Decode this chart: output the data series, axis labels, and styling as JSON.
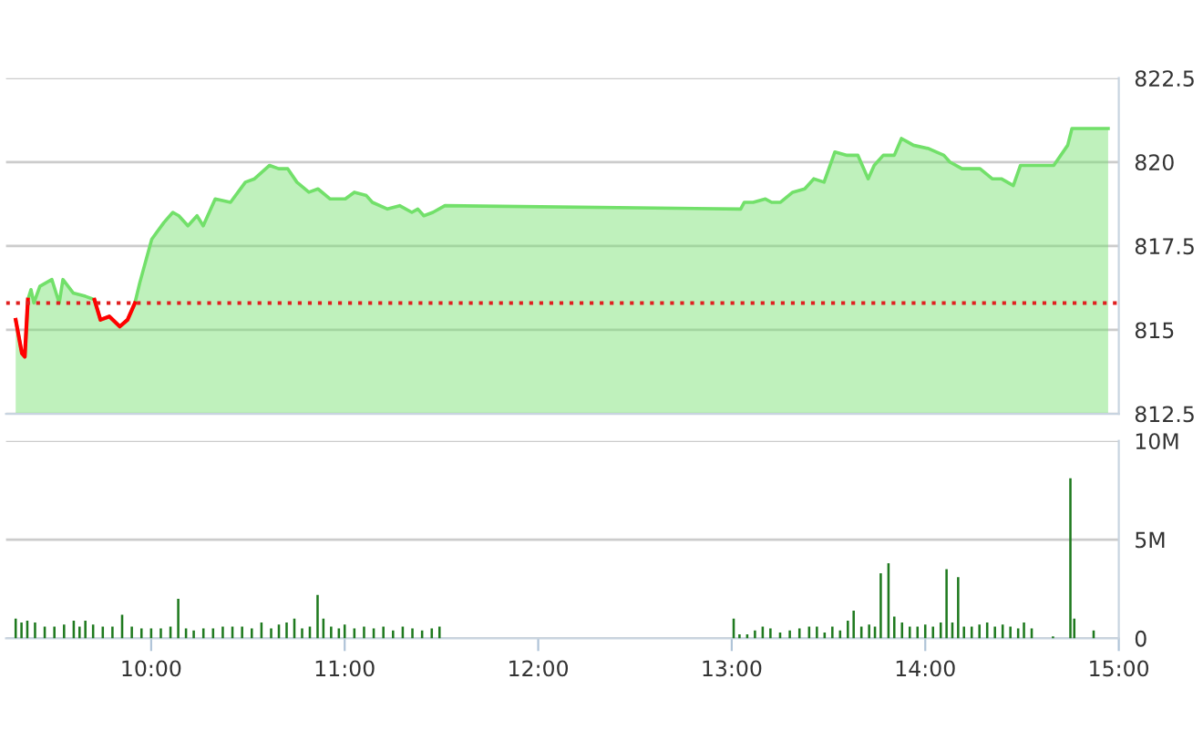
{
  "chart_data": [
    {
      "type": "area",
      "xlim": [
        9.25,
        15
      ],
      "ylim": [
        812.5,
        822.5
      ],
      "yticks": [
        812.5,
        815,
        817.5,
        820,
        822.5
      ],
      "tick_labels": "y",
      "grid": "y",
      "legend": false,
      "series": [
        {
          "color": "#72e06a",
          "x": [
            9.3,
            9.332,
            9.347,
            9.363,
            9.379,
            9.394,
            9.425,
            9.487,
            9.525,
            9.544,
            9.597,
            9.66,
            9.707,
            9.738,
            9.784,
            9.838,
            9.878,
            9.916,
            9.941,
            10.003,
            10.066,
            10.112,
            10.143,
            10.19,
            10.237,
            10.269,
            10.331,
            10.41,
            10.487,
            10.534,
            10.612,
            10.659,
            10.706,
            10.753,
            10.815,
            10.862,
            10.925,
            11.003,
            11.05,
            11.112,
            11.143,
            11.221,
            11.284,
            11.347,
            11.378,
            11.409,
            11.456,
            11.518,
            13.046,
            13.065,
            13.111,
            13.174,
            13.206,
            13.252,
            13.315,
            13.377,
            13.424,
            13.477,
            13.533,
            13.596,
            13.652,
            13.705,
            13.736,
            13.783,
            13.84,
            13.877,
            13.908,
            13.939,
            14.018,
            14.096,
            14.127,
            14.19,
            14.283,
            14.346,
            14.393,
            14.455,
            14.492,
            14.664,
            14.736,
            14.758,
            14.945
          ],
          "values": [
            815.3,
            814.3,
            814.2,
            815.9,
            816.2,
            815.8,
            816.3,
            816.5,
            815.8,
            816.5,
            816.1,
            816.0,
            815.9,
            815.3,
            815.4,
            815.1,
            815.3,
            815.8,
            816.4,
            817.7,
            818.2,
            818.5,
            818.4,
            818.1,
            818.4,
            818.1,
            818.9,
            818.8,
            819.4,
            819.5,
            819.9,
            819.8,
            819.8,
            819.4,
            819.1,
            819.2,
            818.9,
            818.9,
            819.1,
            819.0,
            818.8,
            818.6,
            818.7,
            818.5,
            818.6,
            818.4,
            818.5,
            818.7,
            818.6,
            818.8,
            818.8,
            818.9,
            818.8,
            818.8,
            819.1,
            819.2,
            819.5,
            819.4,
            820.3,
            820.2,
            820.2,
            819.5,
            819.9,
            820.2,
            820.2,
            820.7,
            820.6,
            820.5,
            820.4,
            820.2,
            820.0,
            819.8,
            819.8,
            819.5,
            819.5,
            819.3,
            819.9,
            819.9,
            820.5,
            821.0,
            821.0
          ]
        },
        {
          "type": "line",
          "color": "#ff0000",
          "x": [
            9.3,
            9.332,
            9.347,
            9.363,
            9.5,
            9.707,
            9.738,
            9.784,
            9.838,
            9.878,
            9.916
          ],
          "values": [
            815.3,
            814.3,
            814.2,
            815.9,
            null,
            815.9,
            815.3,
            815.4,
            815.1,
            815.3,
            815.8
          ]
        }
      ],
      "ref_lines": [
        {
          "axis": "y",
          "value": 815.8,
          "color": "#e02020",
          "line_style": "dotted"
        }
      ]
    },
    {
      "type": "bar",
      "xlim": [
        9.25,
        15
      ],
      "ylim": [
        0,
        10
      ],
      "yticks": [
        0,
        {
          "value": 5,
          "label": "5M"
        },
        {
          "value": 10,
          "label": "10M"
        }
      ],
      "xticks": [
        {
          "value": 10,
          "label": "10:00"
        },
        {
          "value": 11,
          "label": "11:00"
        },
        {
          "value": 12,
          "label": "12:00"
        },
        {
          "value": 13,
          "label": "13:00"
        },
        {
          "value": 14,
          "label": "14:00"
        },
        {
          "value": 15,
          "label": "15:00"
        }
      ],
      "grid": "y",
      "legend": false,
      "series": [
        {
          "color": "#1f7a1f",
          "x": [
            9.3,
            9.33,
            9.36,
            9.4,
            9.45,
            9.5,
            9.55,
            9.6,
            9.63,
            9.66,
            9.7,
            9.75,
            9.8,
            9.85,
            9.9,
            9.95,
            10.0,
            10.05,
            10.1,
            10.14,
            10.18,
            10.22,
            10.27,
            10.32,
            10.37,
            10.42,
            10.47,
            10.52,
            10.57,
            10.62,
            10.66,
            10.7,
            10.74,
            10.78,
            10.82,
            10.86,
            10.89,
            10.93,
            10.97,
            11.0,
            11.05,
            11.1,
            11.15,
            11.2,
            11.25,
            11.3,
            11.35,
            11.4,
            11.45,
            11.49,
            13.01,
            13.04,
            13.08,
            13.12,
            13.16,
            13.2,
            13.25,
            13.3,
            13.35,
            13.4,
            13.44,
            13.48,
            13.52,
            13.56,
            13.6,
            13.63,
            13.67,
            13.71,
            13.74,
            13.77,
            13.81,
            13.84,
            13.88,
            13.92,
            13.96,
            14.0,
            14.04,
            14.08,
            14.11,
            14.14,
            14.17,
            14.2,
            14.24,
            14.28,
            14.32,
            14.36,
            14.4,
            14.44,
            14.48,
            14.51,
            14.55,
            14.66,
            14.75,
            14.77,
            14.87
          ],
          "values": [
            1.0,
            0.8,
            0.9,
            0.8,
            0.6,
            0.6,
            0.7,
            0.9,
            0.6,
            0.9,
            0.7,
            0.6,
            0.6,
            1.2,
            0.6,
            0.5,
            0.5,
            0.5,
            0.6,
            2.0,
            0.5,
            0.4,
            0.5,
            0.5,
            0.6,
            0.6,
            0.6,
            0.5,
            0.8,
            0.5,
            0.7,
            0.8,
            1.0,
            0.5,
            0.6,
            2.2,
            1.0,
            0.6,
            0.5,
            0.7,
            0.5,
            0.6,
            0.5,
            0.6,
            0.4,
            0.6,
            0.5,
            0.4,
            0.5,
            0.6,
            1.0,
            0.2,
            0.2,
            0.4,
            0.6,
            0.5,
            0.3,
            0.4,
            0.5,
            0.6,
            0.6,
            0.3,
            0.6,
            0.4,
            0.9,
            1.4,
            0.6,
            0.7,
            0.6,
            3.3,
            3.8,
            1.1,
            0.8,
            0.6,
            0.6,
            0.7,
            0.6,
            0.8,
            3.5,
            0.8,
            3.1,
            0.6,
            0.6,
            0.7,
            0.8,
            0.6,
            0.7,
            0.6,
            0.5,
            0.8,
            0.5,
            0.1,
            8.1,
            1.0,
            0.4
          ]
        }
      ]
    }
  ]
}
